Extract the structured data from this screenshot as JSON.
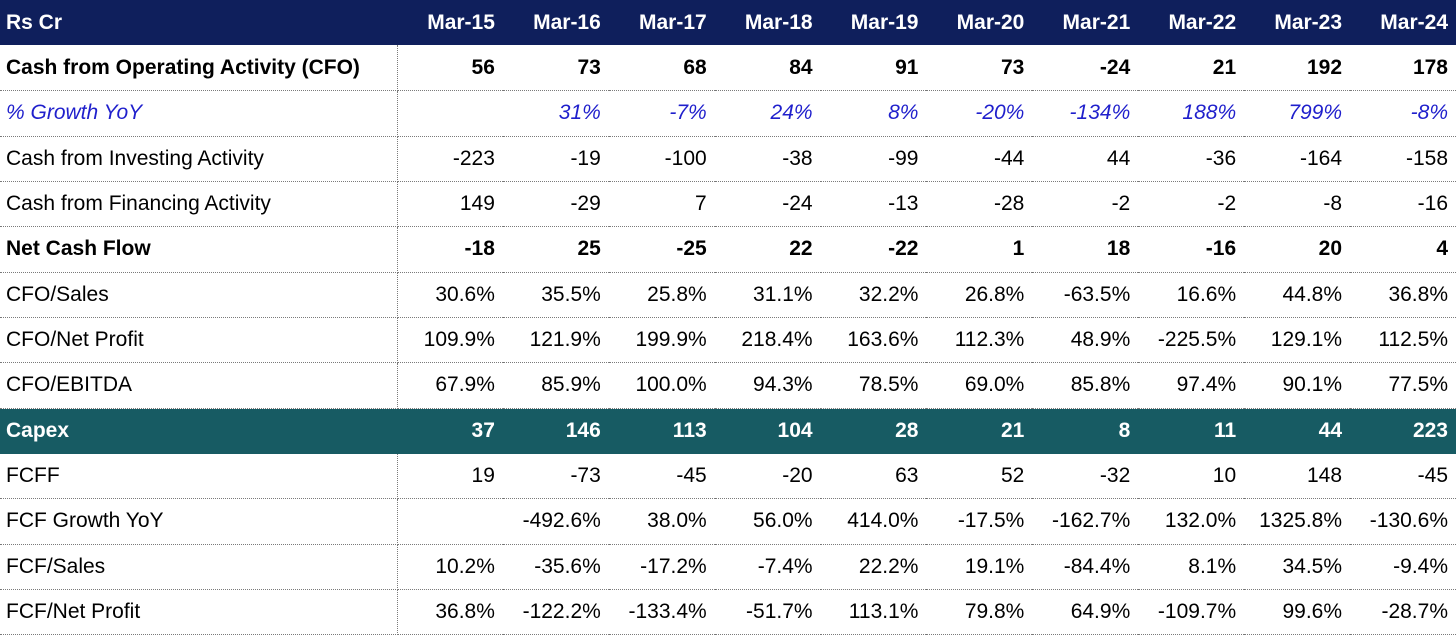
{
  "header": {
    "label": "Rs Cr",
    "years": [
      "Mar-15",
      "Mar-16",
      "Mar-17",
      "Mar-18",
      "Mar-19",
      "Mar-20",
      "Mar-21",
      "Mar-22",
      "Mar-23",
      "Mar-24"
    ]
  },
  "rows": [
    {
      "label": "Cash from Operating Activity (CFO)",
      "style": "bold",
      "values": [
        "56",
        "73",
        "68",
        "84",
        "91",
        "73",
        "-24",
        "21",
        "192",
        "178"
      ]
    },
    {
      "label": "% Growth YoY",
      "style": "growth",
      "values": [
        "",
        "31%",
        "-7%",
        "24%",
        "8%",
        "-20%",
        "-134%",
        "188%",
        "799%",
        "-8%"
      ]
    },
    {
      "label": "Cash from Investing Activity",
      "style": "normal",
      "values": [
        "-223",
        "-19",
        "-100",
        "-38",
        "-99",
        "-44",
        "44",
        "-36",
        "-164",
        "-158"
      ]
    },
    {
      "label": "Cash from Financing Activity",
      "style": "normal",
      "values": [
        "149",
        "-29",
        "7",
        "-24",
        "-13",
        "-28",
        "-2",
        "-2",
        "-8",
        "-16"
      ]
    },
    {
      "label": "Net Cash Flow",
      "style": "bold",
      "values": [
        "-18",
        "25",
        "-25",
        "22",
        "-22",
        "1",
        "18",
        "-16",
        "20",
        "4"
      ]
    },
    {
      "label": "CFO/Sales",
      "style": "normal",
      "values": [
        "30.6%",
        "35.5%",
        "25.8%",
        "31.1%",
        "32.2%",
        "26.8%",
        "-63.5%",
        "16.6%",
        "44.8%",
        "36.8%"
      ]
    },
    {
      "label": "CFO/Net Profit",
      "style": "normal",
      "values": [
        "109.9%",
        "121.9%",
        "199.9%",
        "218.4%",
        "163.6%",
        "112.3%",
        "48.9%",
        "-225.5%",
        "129.1%",
        "112.5%"
      ]
    },
    {
      "label": "CFO/EBITDA",
      "style": "normal",
      "values": [
        "67.9%",
        "85.9%",
        "100.0%",
        "94.3%",
        "78.5%",
        "69.0%",
        "85.8%",
        "97.4%",
        "90.1%",
        "77.5%"
      ]
    },
    {
      "label": "Capex",
      "style": "capex",
      "values": [
        "37",
        "146",
        "113",
        "104",
        "28",
        "21",
        "8",
        "11",
        "44",
        "223"
      ]
    },
    {
      "label": "FCFF",
      "style": "normal",
      "values": [
        "19",
        "-73",
        "-45",
        "-20",
        "63",
        "52",
        "-32",
        "10",
        "148",
        "-45"
      ]
    },
    {
      "label": "FCF Growth YoY",
      "style": "normal",
      "values": [
        "",
        "-492.6%",
        "38.0%",
        "56.0%",
        "414.0%",
        "-17.5%",
        "-162.7%",
        "132.0%",
        "1325.8%",
        "-130.6%"
      ]
    },
    {
      "label": "FCF/Sales",
      "style": "normal",
      "values": [
        "10.2%",
        "-35.6%",
        "-17.2%",
        "-7.4%",
        "22.2%",
        "19.1%",
        "-84.4%",
        "8.1%",
        "34.5%",
        "-9.4%"
      ]
    },
    {
      "label": "FCF/Net Profit",
      "style": "normal",
      "values": [
        "36.8%",
        "-122.2%",
        "-133.4%",
        "-51.7%",
        "113.1%",
        "79.8%",
        "64.9%",
        "-109.7%",
        "99.6%",
        "-28.7%"
      ]
    }
  ],
  "colors": {
    "header_bg": "#0f1f5c",
    "capex_bg": "#175b63",
    "growth_text": "#1f1fcc"
  }
}
